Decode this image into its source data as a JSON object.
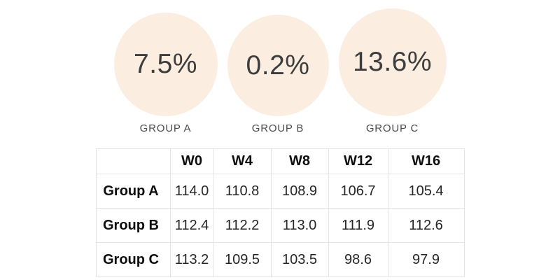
{
  "stats": {
    "circle_color": "#fbeee1",
    "value_color": "#3d3d3d",
    "label_color": "#4b4b4b",
    "items": [
      {
        "value": "7.5%",
        "label": "GROUP A"
      },
      {
        "value": "0.2%",
        "label": "GROUP B"
      },
      {
        "value": "13.6%",
        "label": "GROUP C"
      }
    ]
  },
  "table": {
    "border_color": "#e4e4e4",
    "columns": [
      "",
      "W0",
      "W4",
      "W8",
      "W12",
      "W16"
    ],
    "rows": [
      {
        "label": "Group A",
        "values": [
          "114.0",
          "110.8",
          "108.9",
          "106.7",
          "105.4"
        ]
      },
      {
        "label": "Group B",
        "values": [
          "112.4",
          "112.2",
          "113.0",
          "111.9",
          "112.6"
        ]
      },
      {
        "label": "Group C",
        "values": [
          "113.2",
          "109.5",
          "103.5",
          "98.6",
          "97.9"
        ]
      }
    ]
  },
  "chart_data": [
    {
      "type": "bar",
      "variant": "number-circles",
      "categories": [
        "GROUP A",
        "GROUP B",
        "GROUP C"
      ],
      "values": [
        7.5,
        0.2,
        13.6
      ],
      "unit": "%",
      "title": "",
      "xlabel": "",
      "ylabel": ""
    },
    {
      "type": "table",
      "categories": [
        "W0",
        "W4",
        "W8",
        "W12",
        "W16"
      ],
      "series": [
        {
          "name": "Group A",
          "values": [
            114.0,
            110.8,
            108.9,
            106.7,
            105.4
          ]
        },
        {
          "name": "Group B",
          "values": [
            112.4,
            112.2,
            113.0,
            111.9,
            112.6
          ]
        },
        {
          "name": "Group C",
          "values": [
            113.2,
            109.5,
            103.5,
            98.6,
            97.9
          ]
        }
      ],
      "title": "",
      "grid": true,
      "legend_position": "none"
    }
  ]
}
